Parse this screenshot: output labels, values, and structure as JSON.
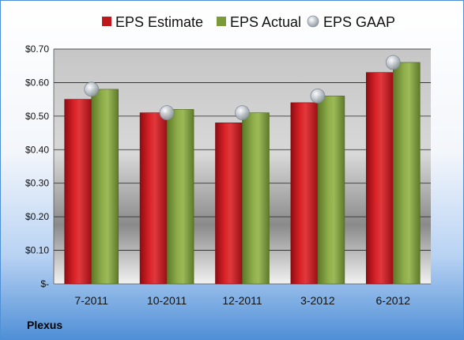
{
  "company": "Plexus",
  "colors": {
    "estimate": "#c0171d",
    "actual": "#7b9a3a",
    "gaap": "#b8bfc8",
    "frame": "#4e8fd6"
  },
  "chart_data": {
    "type": "bar",
    "title": "",
    "xlabel": "",
    "ylabel": "",
    "categories": [
      "7-2011",
      "10-2011",
      "12-2011",
      "3-2012",
      "6-2012"
    ],
    "ylim": [
      0,
      0.7
    ],
    "y_ticks": [
      {
        "value": 0.0,
        "label": "$-"
      },
      {
        "value": 0.1,
        "label": "$0.10"
      },
      {
        "value": 0.2,
        "label": "$0.20"
      },
      {
        "value": 0.3,
        "label": "$0.30"
      },
      {
        "value": 0.4,
        "label": "$0.40"
      },
      {
        "value": 0.5,
        "label": "$0.50"
      },
      {
        "value": 0.6,
        "label": "$0.60"
      },
      {
        "value": 0.7,
        "label": "$0.70"
      }
    ],
    "grid": true,
    "legend_position": "top",
    "series": [
      {
        "name": "EPS Estimate",
        "kind": "bar",
        "values": [
          0.55,
          0.51,
          0.48,
          0.54,
          0.63
        ]
      },
      {
        "name": "EPS Actual",
        "kind": "bar",
        "values": [
          0.58,
          0.52,
          0.51,
          0.56,
          0.66
        ]
      },
      {
        "name": "EPS GAAP",
        "kind": "marker",
        "values": [
          0.58,
          0.51,
          0.51,
          0.56,
          0.66
        ]
      }
    ]
  }
}
